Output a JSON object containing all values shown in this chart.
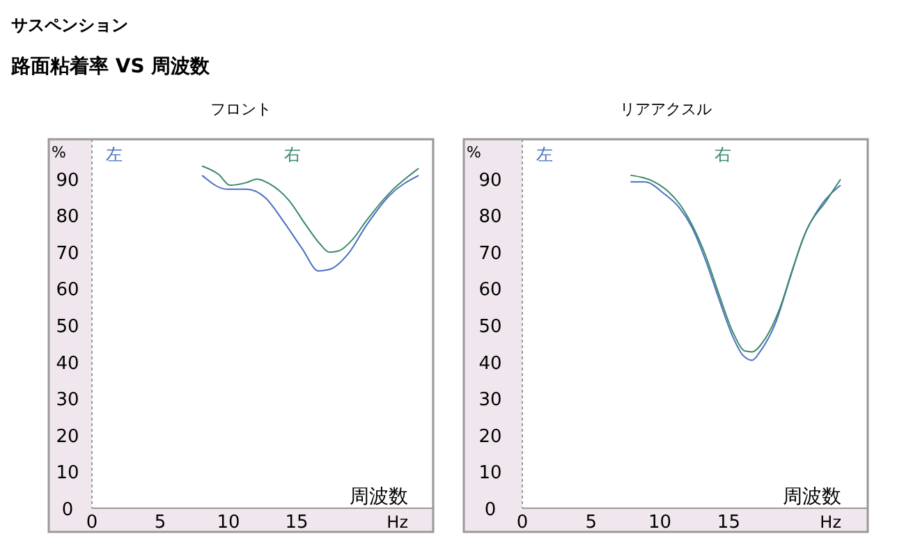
{
  "chart_data": [
    {
      "type": "line",
      "title": "フロント",
      "annotations": [
        "サスペンション",
        "路面粘着率 VS 周波数",
        "Hz"
      ],
      "xlabel": "周波数",
      "ylabel": "%",
      "xlim": [
        0,
        25
      ],
      "xticks": [
        0,
        5,
        10,
        15
      ],
      "ylim": [
        0,
        100
      ],
      "yticks": [
        0,
        10,
        20,
        30,
        40,
        50,
        60,
        70,
        80,
        90
      ],
      "grid": false,
      "legend": "top",
      "line_style": "solid",
      "series": [
        {
          "name": "左",
          "color": "#4a6fc0",
          "x": [
            8.1,
            9.9,
            11.3,
            12.7,
            14,
            15.4,
            16.6,
            17.4,
            18.8,
            20.1,
            21.8,
            23.9
          ],
          "values": [
            90.8,
            87.1,
            87.1,
            84.8,
            78.5,
            70.9,
            64.8,
            65.2,
            69.6,
            77.2,
            85.4,
            90.8
          ]
        },
        {
          "name": "右",
          "color": "#3a8a6a",
          "x": [
            8.1,
            9.3,
            10.1,
            11.3,
            12.1,
            13,
            14.4,
            15.7,
            16.7,
            17.4,
            18.1,
            19.1,
            20.1,
            21.8,
            23.9
          ],
          "values": [
            93.4,
            91.1,
            88.2,
            88.9,
            89.9,
            88.6,
            84.2,
            77.2,
            72.2,
            69.9,
            70.3,
            73.4,
            78.5,
            86.1,
            92.7
          ]
        }
      ]
    },
    {
      "type": "line",
      "title": "リアアクスル",
      "annotations": [
        "Hz"
      ],
      "xlabel": "周波数",
      "ylabel": "%",
      "xlim": [
        0,
        25
      ],
      "xticks": [
        0,
        5,
        10,
        15
      ],
      "ylim": [
        0,
        100
      ],
      "yticks": [
        0,
        10,
        20,
        30,
        40,
        50,
        60,
        70,
        80,
        90
      ],
      "grid": false,
      "legend": "top",
      "line_style": "solid",
      "series": [
        {
          "name": "左",
          "color": "#4a6fc0",
          "x": [
            7.9,
            8.9,
            10.3,
            11.4,
            12.3,
            13.3,
            14.3,
            15.3,
            16,
            16.7,
            17.3,
            18.4,
            19.4,
            20.4,
            21.7,
            23.1
          ],
          "values": [
            89.1,
            89.1,
            85.9,
            82.1,
            76.9,
            67.9,
            57,
            46.8,
            41.9,
            40.4,
            42.9,
            50.6,
            62.2,
            73.7,
            82.7,
            88.1
          ]
        },
        {
          "name": "右",
          "color": "#3a8a6a",
          "x": [
            7.9,
            9.6,
            10.6,
            11.5,
            12.3,
            13.3,
            14.3,
            15.3,
            16.2,
            16.7,
            17.5,
            18.7,
            19.7,
            20.7,
            22.1,
            23.1
          ],
          "values": [
            90.9,
            89.1,
            86.5,
            82.7,
            77.6,
            69.2,
            58.3,
            48.1,
            42.9,
            42.7,
            45.5,
            54.5,
            66,
            76.3,
            84,
            89.7
          ]
        }
      ]
    }
  ]
}
